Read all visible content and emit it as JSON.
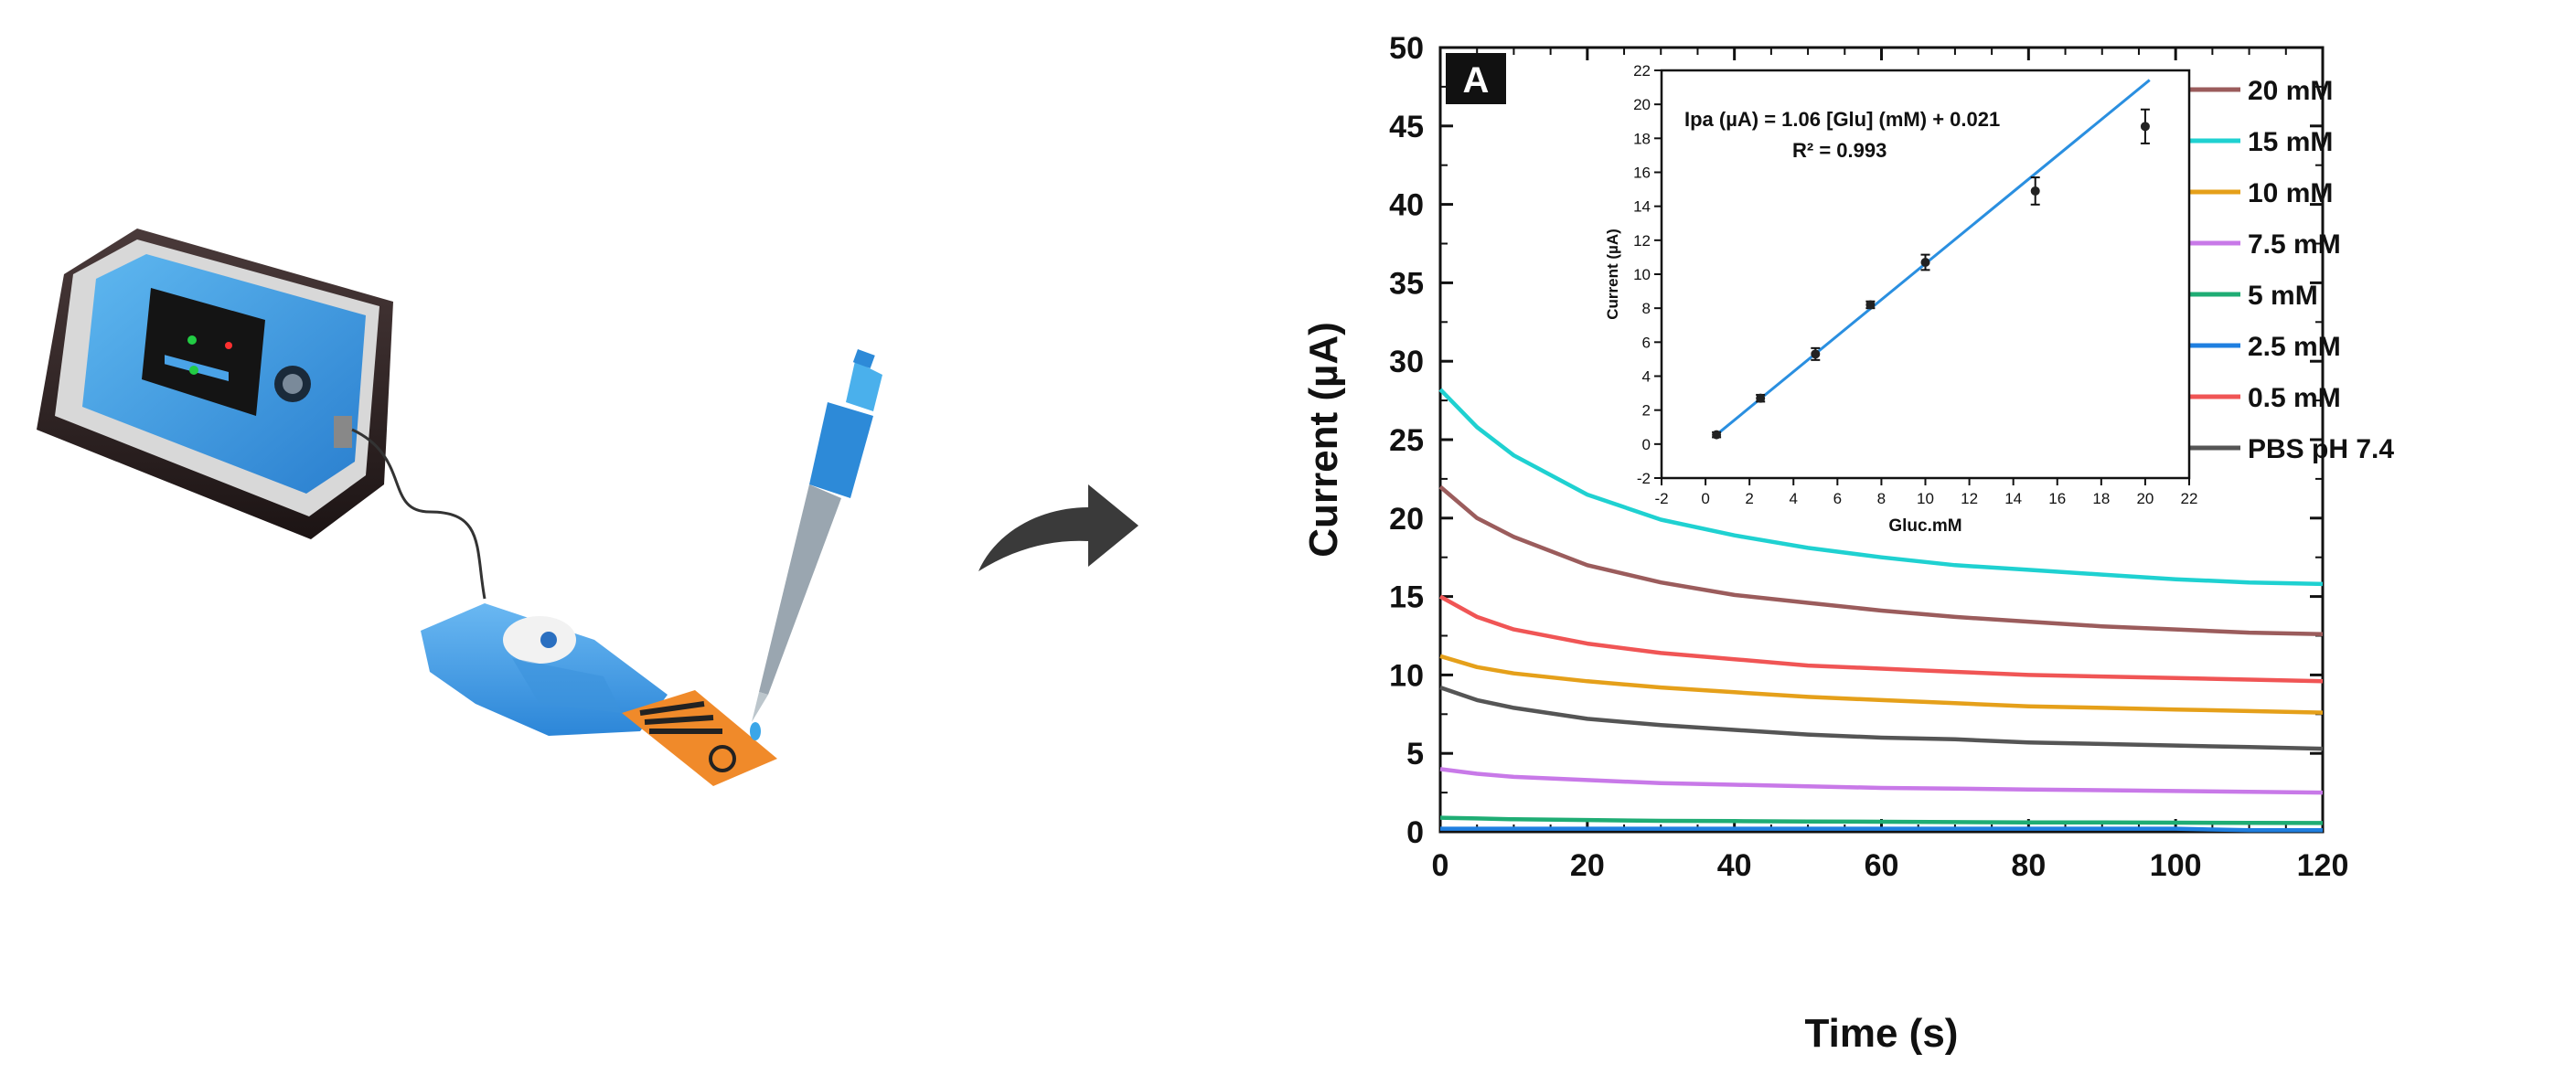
{
  "chart_data": [
    {
      "type": "line",
      "panel_label": "A",
      "xlabel": "Time (s)",
      "ylabel": "Current (µA)",
      "xlim": [
        0,
        120
      ],
      "ylim": [
        0,
        50
      ],
      "xticks": [
        "0",
        "20",
        "40",
        "60",
        "80",
        "100",
        "120"
      ],
      "yticks": [
        "0",
        "5",
        "10",
        "15",
        "20",
        "25",
        "30",
        "35",
        "40",
        "45",
        "50"
      ],
      "legend_position": "top-right",
      "grid": false,
      "series": [
        {
          "name": "20  mM",
          "color": "#9b5c5c",
          "x": [
            0,
            5,
            10,
            20,
            30,
            40,
            50,
            60,
            70,
            80,
            90,
            100,
            110,
            120
          ],
          "y": [
            22.0,
            20.0,
            18.8,
            17.0,
            15.9,
            15.1,
            14.6,
            14.1,
            13.7,
            13.4,
            13.1,
            12.9,
            12.7,
            12.6
          ]
        },
        {
          "name": "15  mM",
          "color": "#1fd1d1",
          "x": [
            0,
            5,
            10,
            20,
            30,
            40,
            50,
            60,
            70,
            80,
            90,
            100,
            110,
            120
          ],
          "y": [
            28.2,
            25.8,
            24.0,
            21.5,
            19.9,
            18.9,
            18.1,
            17.5,
            17.0,
            16.7,
            16.4,
            16.1,
            15.9,
            15.8
          ]
        },
        {
          "name": "10  mM",
          "color": "#e5a01a",
          "x": [
            0,
            5,
            10,
            20,
            30,
            40,
            50,
            60,
            70,
            80,
            90,
            100,
            110,
            120
          ],
          "y": [
            11.2,
            10.5,
            10.1,
            9.6,
            9.2,
            8.9,
            8.6,
            8.4,
            8.2,
            8.0,
            7.9,
            7.8,
            7.7,
            7.6
          ]
        },
        {
          "name": "7.5 mM",
          "color": "#c879e8",
          "x": [
            0,
            5,
            10,
            20,
            30,
            40,
            50,
            60,
            70,
            80,
            90,
            100,
            110,
            120
          ],
          "y": [
            4.0,
            3.7,
            3.5,
            3.3,
            3.1,
            3.0,
            2.9,
            2.8,
            2.75,
            2.7,
            2.65,
            2.6,
            2.55,
            2.5
          ]
        },
        {
          "name": "5    mM",
          "color": "#1fad74",
          "x": [
            0,
            5,
            10,
            20,
            30,
            40,
            50,
            60,
            70,
            80,
            90,
            100,
            110,
            120
          ],
          "y": [
            0.9,
            0.85,
            0.8,
            0.75,
            0.7,
            0.68,
            0.66,
            0.64,
            0.62,
            0.6,
            0.6,
            0.58,
            0.57,
            0.56
          ]
        },
        {
          "name": "2.5 mM",
          "color": "#1f7fe0",
          "x": [
            0,
            5,
            10,
            20,
            30,
            40,
            50,
            60,
            70,
            80,
            90,
            100,
            110,
            120
          ],
          "y": [
            0.2,
            0.2,
            0.2,
            0.2,
            0.2,
            0.2,
            0.2,
            0.2,
            0.2,
            0.2,
            0.2,
            0.2,
            0.1,
            0.1
          ]
        },
        {
          "name": "0.5 mM",
          "color": "#f05555",
          "x": [
            0,
            5,
            10,
            20,
            30,
            40,
            50,
            60,
            70,
            80,
            90,
            100,
            110,
            120
          ],
          "y": [
            15.0,
            13.7,
            12.9,
            12.0,
            11.4,
            11.0,
            10.6,
            10.4,
            10.2,
            10.0,
            9.9,
            9.8,
            9.7,
            9.6
          ]
        },
        {
          "name": "PBS pH 7.4",
          "color": "#555555",
          "x": [
            0,
            5,
            10,
            20,
            30,
            40,
            50,
            60,
            70,
            80,
            90,
            100,
            110,
            120
          ],
          "y": [
            9.2,
            8.4,
            7.9,
            7.2,
            6.8,
            6.5,
            6.2,
            6.0,
            5.9,
            5.7,
            5.6,
            5.5,
            5.4,
            5.3
          ]
        }
      ]
    },
    {
      "type": "scatter",
      "xlabel": "Gluc.mM",
      "ylabel": "Current (µA)",
      "xlim": [
        -2,
        22
      ],
      "ylim": [
        -2,
        22
      ],
      "xticks": [
        "-2",
        "0",
        "2",
        "4",
        "6",
        "8",
        "10",
        "12",
        "14",
        "16",
        "18",
        "20",
        "22"
      ],
      "yticks": [
        "-2",
        "0",
        "2",
        "4",
        "6",
        "8",
        "10",
        "12",
        "14",
        "16",
        "18",
        "20",
        "22"
      ],
      "equation": "Ipa (µA) = 1.06 [Glu] (mM) + 0.021",
      "r_squared": "R² = 0.993",
      "points": {
        "x": [
          0.5,
          2.5,
          5,
          7.5,
          10,
          15,
          20
        ],
        "y": [
          0.55,
          2.7,
          5.3,
          8.2,
          10.7,
          14.9,
          18.7
        ],
        "err": [
          0.15,
          0.2,
          0.35,
          0.2,
          0.45,
          0.8,
          1.0
        ]
      },
      "fit": {
        "slope": 1.06,
        "intercept": 0.021,
        "x_range": [
          0.5,
          20.2
        ],
        "color": "#2a8fe0"
      }
    }
  ],
  "colors": {
    "arrow": "#3a3a3a",
    "device_blue": "#2b8fd6",
    "strip_orange": "#f08a2a",
    "device_body": "#2a1f1f"
  }
}
